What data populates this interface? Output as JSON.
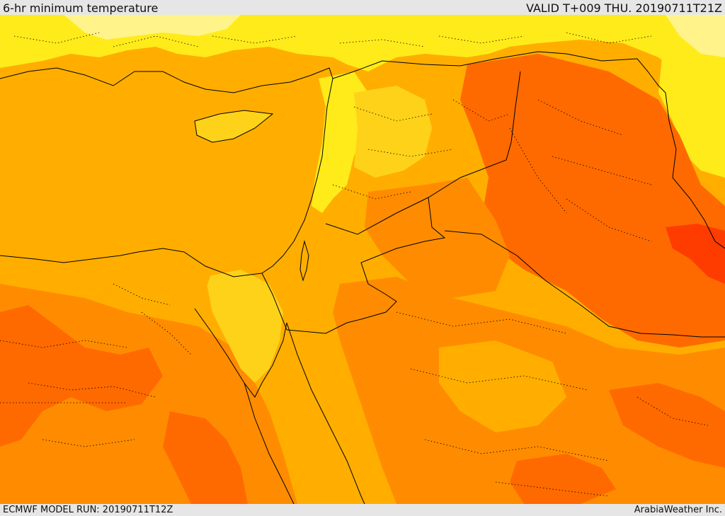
{
  "header": {
    "title": "6-hr minimum temperature",
    "valid": "VALID T+009 THU. 20190711T21Z"
  },
  "footer": {
    "model_run": "ECMWF MODEL RUN: 20190711T12Z",
    "credit": "ArabiaWeather Inc."
  },
  "map": {
    "palette": {
      "pale_yellow": "#ffff80",
      "yellow": "#ffff00",
      "light_orange": "#ffd700",
      "amber": "#ffaf00",
      "orange": "#ff8c00",
      "dark_orange": "#ff6400",
      "red": "#ff3200",
      "boundary_line": "#000000"
    }
  }
}
